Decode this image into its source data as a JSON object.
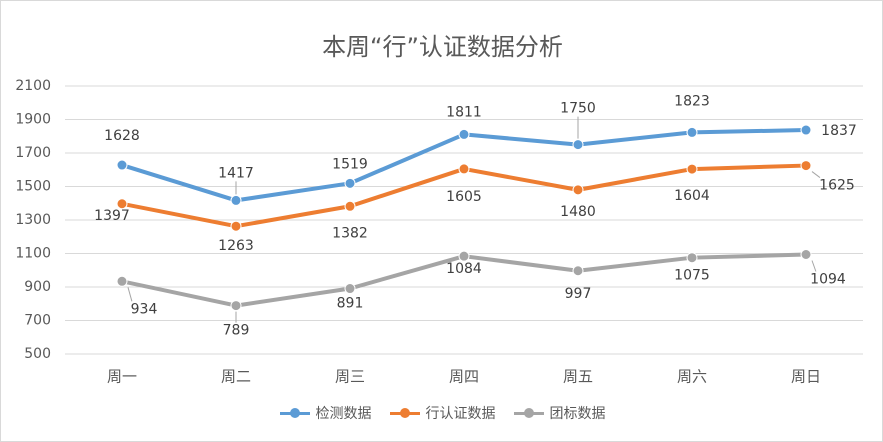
{
  "chart_data": {
    "type": "line",
    "title": "本周“行”认证数据分析",
    "categories": [
      "周一",
      "周二",
      "周三",
      "周四",
      "周五",
      "周六",
      "周日"
    ],
    "ylim": [
      500,
      2100
    ],
    "yticks": [
      500,
      700,
      900,
      1100,
      1300,
      1500,
      1700,
      1900,
      2100
    ],
    "grid": true,
    "legend_position": "bottom",
    "series": [
      {
        "name": "检测数据",
        "color": "#5b9bd5",
        "values": [
          1628,
          1417,
          1519,
          1811,
          1750,
          1823,
          1837
        ]
      },
      {
        "name": "行认证数据",
        "color": "#ed7d31",
        "values": [
          1397,
          1263,
          1382,
          1605,
          1480,
          1604,
          1625
        ]
      },
      {
        "name": "团标数据",
        "color": "#a5a5a5",
        "values": [
          934,
          789,
          891,
          1084,
          997,
          1075,
          1094
        ]
      }
    ]
  }
}
